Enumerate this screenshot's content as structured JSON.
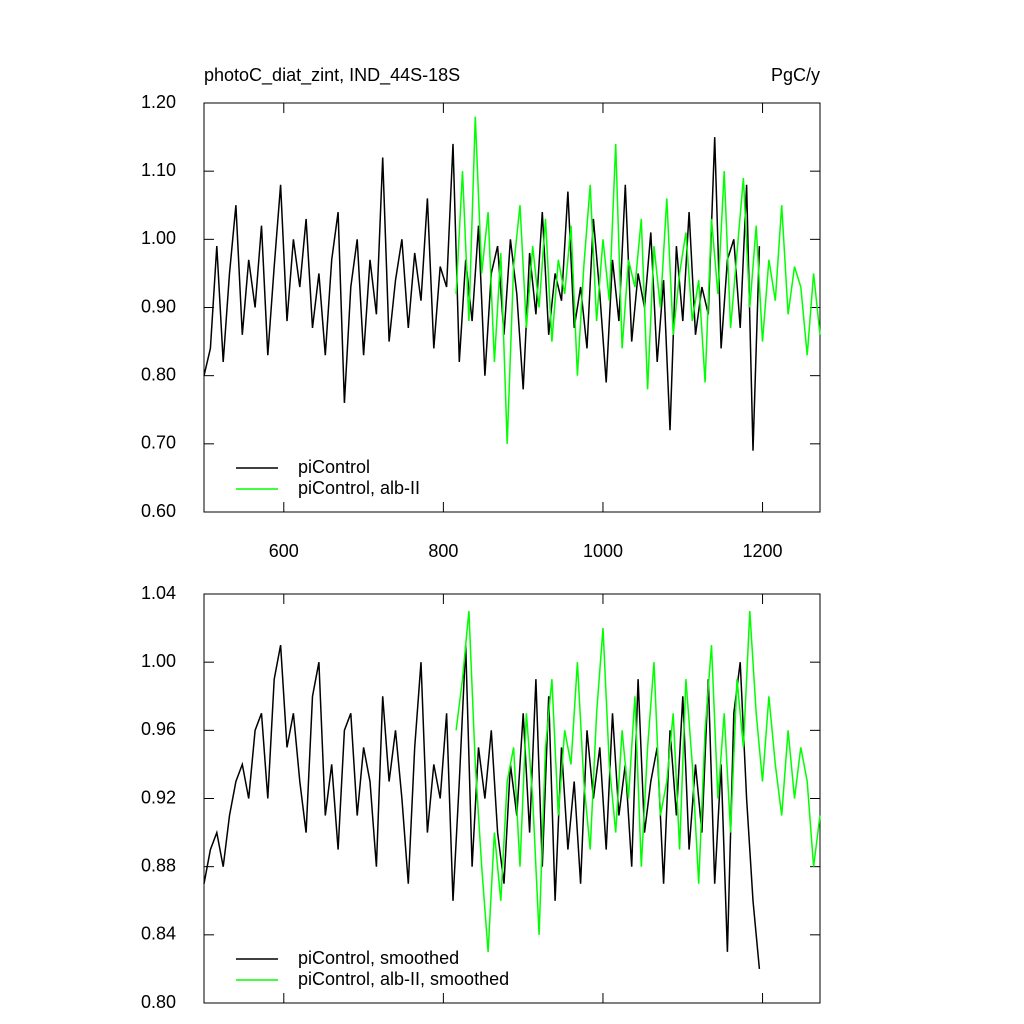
{
  "chart_data": [
    {
      "type": "line",
      "title": "photoC_diat_zint, IND_44S-18S",
      "y_units": "PgC/y",
      "xlim": [
        500,
        1272
      ],
      "xticks": [
        600,
        800,
        1000,
        1200
      ],
      "ylim": [
        0.6,
        1.2
      ],
      "yticks": [
        {
          "value": 0.6,
          "label": "0.60"
        },
        {
          "value": 0.7,
          "label": "0.70"
        },
        {
          "value": 0.8,
          "label": "0.80"
        },
        {
          "value": 0.9,
          "label": "0.90"
        },
        {
          "value": 1.0,
          "label": "1.00"
        },
        {
          "value": 1.1,
          "label": "1.10"
        },
        {
          "value": 1.2,
          "label": "1.20"
        }
      ],
      "legend": "lower left",
      "series": [
        {
          "name": "piControl",
          "color": "#000000",
          "x": [
            500,
            508,
            516,
            524,
            532,
            540,
            548,
            556,
            564,
            572,
            580,
            588,
            596,
            604,
            612,
            620,
            628,
            636,
            644,
            652,
            660,
            668,
            676,
            684,
            692,
            700,
            708,
            716,
            724,
            732,
            740,
            748,
            756,
            764,
            772,
            780,
            788,
            796,
            804,
            812,
            820,
            828,
            836,
            844,
            852,
            860,
            868,
            876,
            884,
            892,
            900,
            908,
            916,
            924,
            932,
            940,
            948,
            956,
            964,
            972,
            980,
            988,
            996,
            1004,
            1012,
            1020,
            1028,
            1036,
            1044,
            1052,
            1060,
            1068,
            1076,
            1084,
            1092,
            1100,
            1108,
            1116,
            1124,
            1132,
            1140,
            1148,
            1156,
            1164,
            1172,
            1180,
            1188,
            1196
          ],
          "values": [
            0.8,
            0.84,
            0.99,
            0.82,
            0.95,
            1.05,
            0.86,
            0.97,
            0.9,
            1.02,
            0.83,
            0.96,
            1.08,
            0.88,
            1.0,
            0.93,
            1.03,
            0.87,
            0.95,
            0.83,
            0.97,
            1.04,
            0.76,
            0.93,
            1.0,
            0.83,
            0.97,
            0.89,
            1.12,
            0.85,
            0.94,
            1.0,
            0.87,
            0.98,
            0.91,
            1.06,
            0.84,
            0.96,
            0.93,
            1.14,
            0.82,
            0.97,
            0.88,
            1.02,
            0.8,
            0.95,
            0.99,
            0.86,
            1.0,
            0.92,
            0.78,
            0.98,
            0.89,
            1.04,
            0.86,
            0.95,
            0.91,
            1.07,
            0.87,
            0.93,
            0.84,
            1.03,
            0.92,
            0.79,
            0.97,
            0.88,
            1.08,
            0.85,
            0.95,
            0.9,
            1.01,
            0.82,
            0.94,
            0.72,
            0.99,
            0.88,
            1.04,
            0.86,
            0.93,
            0.89,
            1.15,
            0.84,
            0.97,
            1.0,
            0.87,
            1.08,
            0.69,
            0.99
          ]
        },
        {
          "name": "piControl, alb-II",
          "color": "#00ff00",
          "x": [
            816,
            824,
            832,
            840,
            848,
            856,
            864,
            872,
            880,
            888,
            896,
            904,
            912,
            920,
            928,
            936,
            944,
            952,
            960,
            968,
            976,
            984,
            992,
            1000,
            1008,
            1016,
            1024,
            1032,
            1040,
            1048,
            1056,
            1064,
            1072,
            1080,
            1088,
            1096,
            1104,
            1112,
            1120,
            1128,
            1136,
            1144,
            1152,
            1160,
            1168,
            1176,
            1184,
            1192,
            1200,
            1208,
            1216,
            1224,
            1232,
            1240,
            1248,
            1256,
            1264,
            1272
          ],
          "values": [
            0.92,
            1.1,
            0.88,
            1.18,
            0.95,
            1.04,
            0.82,
            0.98,
            0.7,
            0.96,
            1.05,
            0.87,
            0.99,
            0.9,
            1.03,
            0.85,
            0.97,
            0.92,
            1.02,
            0.8,
            0.96,
            1.08,
            0.88,
            1.0,
            0.91,
            1.14,
            0.84,
            0.97,
            0.93,
            1.03,
            0.78,
            0.99,
            0.9,
            1.06,
            0.86,
            0.95,
            1.01,
            0.88,
            0.94,
            0.79,
            1.03,
            0.92,
            1.1,
            0.87,
            0.98,
            1.09,
            0.9,
            1.02,
            0.85,
            0.97,
            0.91,
            1.05,
            0.89,
            0.96,
            0.93,
            0.83,
            0.95,
            0.86
          ]
        }
      ]
    },
    {
      "type": "line",
      "xlim": [
        500,
        1272
      ],
      "xticks": [
        600,
        800,
        1000,
        1200
      ],
      "ylim": [
        0.8,
        1.04
      ],
      "yticks": [
        {
          "value": 0.8,
          "label": "0.80"
        },
        {
          "value": 0.84,
          "label": "0.84"
        },
        {
          "value": 0.88,
          "label": "0.88"
        },
        {
          "value": 0.92,
          "label": "0.92"
        },
        {
          "value": 0.96,
          "label": "0.96"
        },
        {
          "value": 1.0,
          "label": "1.00"
        },
        {
          "value": 1.04,
          "label": "1.04"
        }
      ],
      "legend": "lower left",
      "series": [
        {
          "name": "piControl, smoothed",
          "color": "#000000",
          "x": [
            500,
            508,
            516,
            524,
            532,
            540,
            548,
            556,
            564,
            572,
            580,
            588,
            596,
            604,
            612,
            620,
            628,
            636,
            644,
            652,
            660,
            668,
            676,
            684,
            692,
            700,
            708,
            716,
            724,
            732,
            740,
            748,
            756,
            764,
            772,
            780,
            788,
            796,
            804,
            812,
            820,
            828,
            836,
            844,
            852,
            860,
            868,
            876,
            884,
            892,
            900,
            908,
            916,
            924,
            932,
            940,
            948,
            956,
            964,
            972,
            980,
            988,
            996,
            1004,
            1012,
            1020,
            1028,
            1036,
            1044,
            1052,
            1060,
            1068,
            1076,
            1084,
            1092,
            1100,
            1108,
            1116,
            1124,
            1132,
            1140,
            1148,
            1156,
            1164,
            1172,
            1180,
            1188,
            1196
          ],
          "values": [
            0.87,
            0.89,
            0.9,
            0.88,
            0.91,
            0.93,
            0.94,
            0.92,
            0.96,
            0.97,
            0.92,
            0.99,
            1.01,
            0.95,
            0.97,
            0.93,
            0.9,
            0.98,
            1.0,
            0.91,
            0.94,
            0.89,
            0.96,
            0.97,
            0.91,
            0.95,
            0.93,
            0.88,
            0.98,
            0.93,
            0.96,
            0.92,
            0.87,
            0.95,
            1.0,
            0.9,
            0.94,
            0.92,
            0.97,
            0.86,
            0.93,
            1.01,
            0.88,
            0.95,
            0.92,
            0.96,
            0.9,
            0.87,
            0.94,
            0.91,
            0.97,
            0.9,
            0.99,
            0.88,
            0.98,
            0.86,
            0.95,
            0.89,
            0.93,
            0.87,
            0.96,
            0.92,
            0.95,
            0.89,
            0.97,
            0.91,
            0.94,
            0.88,
            0.99,
            0.9,
            0.93,
            0.95,
            0.87,
            0.96,
            0.91,
            0.98,
            0.89,
            0.94,
            0.9,
            0.99,
            0.87,
            0.94,
            0.83,
            0.97,
            1.0,
            0.92,
            0.86,
            0.82
          ]
        },
        {
          "name": "piControl, alb-II, smoothed",
          "color": "#00ff00",
          "x": [
            816,
            824,
            832,
            840,
            848,
            856,
            864,
            872,
            880,
            888,
            896,
            904,
            912,
            920,
            928,
            936,
            944,
            952,
            960,
            968,
            976,
            984,
            992,
            1000,
            1008,
            1016,
            1024,
            1032,
            1040,
            1048,
            1056,
            1064,
            1072,
            1080,
            1088,
            1096,
            1104,
            1112,
            1120,
            1128,
            1136,
            1144,
            1152,
            1160,
            1168,
            1176,
            1184,
            1192,
            1200,
            1208,
            1216,
            1224,
            1232,
            1240,
            1248,
            1256,
            1264,
            1272
          ],
          "values": [
            0.96,
            0.99,
            1.03,
            0.94,
            0.88,
            0.83,
            0.9,
            0.86,
            0.93,
            0.95,
            0.88,
            0.97,
            0.92,
            0.84,
            0.95,
            0.99,
            0.91,
            0.96,
            0.94,
            1.0,
            0.93,
            0.89,
            0.97,
            1.02,
            0.94,
            0.9,
            0.96,
            0.92,
            0.98,
            0.88,
            0.95,
            1.0,
            0.91,
            0.93,
            0.97,
            0.89,
            0.99,
            0.94,
            0.87,
            0.96,
            1.01,
            0.92,
            0.97,
            0.9,
            0.99,
            0.95,
            1.03,
            0.97,
            0.93,
            0.98,
            0.94,
            0.91,
            0.96,
            0.92,
            0.95,
            0.93,
            0.88,
            0.91
          ]
        }
      ]
    }
  ]
}
